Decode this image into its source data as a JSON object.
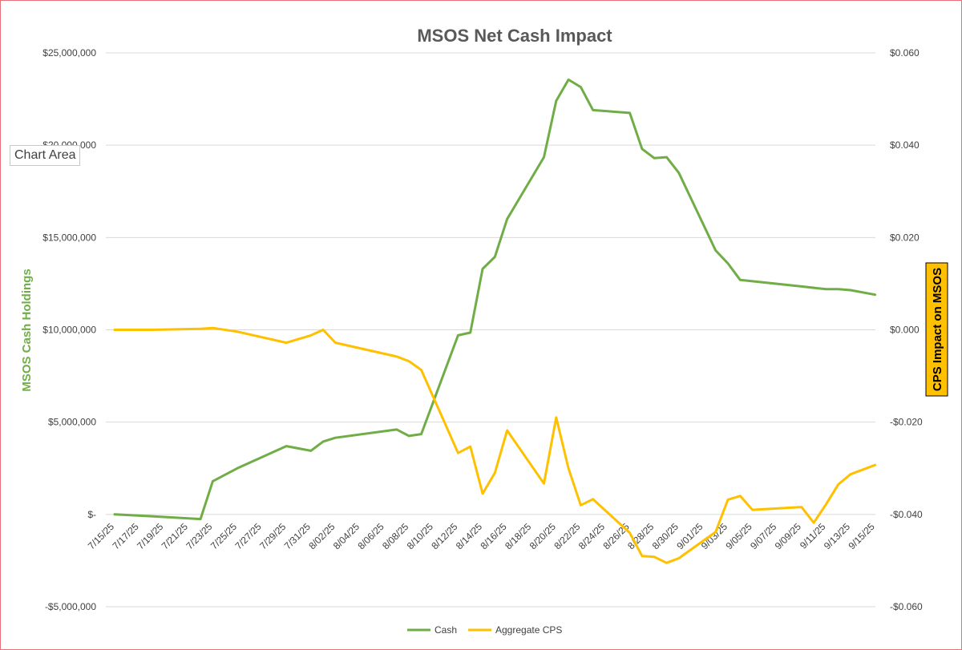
{
  "chart_data": {
    "type": "line",
    "title": "MSOS Net Cash Impact",
    "ylabel": "MSOS Cash Holdings",
    "y2label": "CPS Impact on MSOS",
    "ylim": [
      -5000000,
      25000000
    ],
    "y2lim": [
      -0.06,
      0.06
    ],
    "y_ticks": [
      "$25,000,000",
      "$20,000,000",
      "$15,000,000",
      "$10,000,000",
      "$5,000,000",
      "$-",
      "-$5,000,000"
    ],
    "y2_ticks": [
      "$0.060",
      "$0.040",
      "$0.020",
      "$0.000",
      "-$0.020",
      "-$0.040",
      "-$0.060"
    ],
    "x_ticks": [
      "7/15/25",
      "7/17/25",
      "7/19/25",
      "7/21/25",
      "7/23/25",
      "7/25/25",
      "7/27/25",
      "7/29/25",
      "7/31/25",
      "8/02/25",
      "8/04/25",
      "8/06/25",
      "8/08/25",
      "8/10/25",
      "8/12/25",
      "8/14/25",
      "8/16/25",
      "8/18/25",
      "8/20/25",
      "8/22/25",
      "8/24/25",
      "8/26/25",
      "8/28/25",
      "8/30/25",
      "9/01/25",
      "9/03/25",
      "9/05/25",
      "9/07/25",
      "9/09/25",
      "9/11/25",
      "9/13/25",
      "9/15/25"
    ],
    "x_start": "2025-07-15",
    "legend_position": "bottom",
    "gridlines": true,
    "series": [
      {
        "name": "Cash",
        "axis": "left",
        "color": "#70ad47",
        "points": [
          [
            "2025-07-15",
            0
          ],
          [
            "2025-07-18",
            -100000
          ],
          [
            "2025-07-22",
            -250000
          ],
          [
            "2025-07-23",
            1800000
          ],
          [
            "2025-07-25",
            2500000
          ],
          [
            "2025-07-29",
            3700000
          ],
          [
            "2025-07-31",
            3450000
          ],
          [
            "2025-08-01",
            3950000
          ],
          [
            "2025-08-02",
            4150000
          ],
          [
            "2025-08-07",
            4600000
          ],
          [
            "2025-08-08",
            4250000
          ],
          [
            "2025-08-09",
            4350000
          ],
          [
            "2025-08-12",
            9700000
          ],
          [
            "2025-08-13",
            9850000
          ],
          [
            "2025-08-14",
            13300000
          ],
          [
            "2025-08-15",
            13950000
          ],
          [
            "2025-08-16",
            16000000
          ],
          [
            "2025-08-19",
            19350000
          ],
          [
            "2025-08-20",
            22400000
          ],
          [
            "2025-08-21",
            23550000
          ],
          [
            "2025-08-22",
            23150000
          ],
          [
            "2025-08-23",
            21900000
          ],
          [
            "2025-08-26",
            21750000
          ],
          [
            "2025-08-27",
            19800000
          ],
          [
            "2025-08-28",
            19300000
          ],
          [
            "2025-08-29",
            19350000
          ],
          [
            "2025-08-30",
            18500000
          ],
          [
            "2025-09-02",
            14300000
          ],
          [
            "2025-09-03",
            13600000
          ],
          [
            "2025-09-04",
            12700000
          ],
          [
            "2025-09-09",
            12350000
          ],
          [
            "2025-09-11",
            12200000
          ],
          [
            "2025-09-12",
            12200000
          ],
          [
            "2025-09-13",
            12150000
          ],
          [
            "2025-09-15",
            11900000
          ]
        ]
      },
      {
        "name": "Aggregate CPS",
        "axis": "right",
        "color": "#ffc000",
        "points": [
          [
            "2025-07-15",
            0.0
          ],
          [
            "2025-07-18",
            0.0
          ],
          [
            "2025-07-22",
            0.0002
          ],
          [
            "2025-07-23",
            0.0004
          ],
          [
            "2025-07-25",
            -0.0004
          ],
          [
            "2025-07-29",
            -0.0028
          ],
          [
            "2025-07-31",
            -0.0012
          ],
          [
            "2025-08-01",
            0.0
          ],
          [
            "2025-08-02",
            -0.0028
          ],
          [
            "2025-08-07",
            -0.0058
          ],
          [
            "2025-08-08",
            -0.0068
          ],
          [
            "2025-08-09",
            -0.0087
          ],
          [
            "2025-08-12",
            -0.0267
          ],
          [
            "2025-08-13",
            -0.0253
          ],
          [
            "2025-08-14",
            -0.0355
          ],
          [
            "2025-08-15",
            -0.031
          ],
          [
            "2025-08-16",
            -0.0218
          ],
          [
            "2025-08-19",
            -0.0333
          ],
          [
            "2025-08-20",
            -0.019
          ],
          [
            "2025-08-21",
            -0.03
          ],
          [
            "2025-08-22",
            -0.038
          ],
          [
            "2025-08-23",
            -0.0367
          ],
          [
            "2025-08-26",
            -0.044
          ],
          [
            "2025-08-27",
            -0.049
          ],
          [
            "2025-08-28",
            -0.0492
          ],
          [
            "2025-08-29",
            -0.0505
          ],
          [
            "2025-08-30",
            -0.0495
          ],
          [
            "2025-09-02",
            -0.0438
          ],
          [
            "2025-09-03",
            -0.0368
          ],
          [
            "2025-09-04",
            -0.036
          ],
          [
            "2025-09-05",
            -0.039
          ],
          [
            "2025-09-09",
            -0.0384
          ],
          [
            "2025-09-10",
            -0.0418
          ],
          [
            "2025-09-11",
            -0.0378
          ],
          [
            "2025-09-12",
            -0.0335
          ],
          [
            "2025-09-13",
            -0.0313
          ],
          [
            "2025-09-15",
            -0.0293
          ]
        ]
      }
    ]
  },
  "ui": {
    "tooltip": "Chart Area"
  }
}
